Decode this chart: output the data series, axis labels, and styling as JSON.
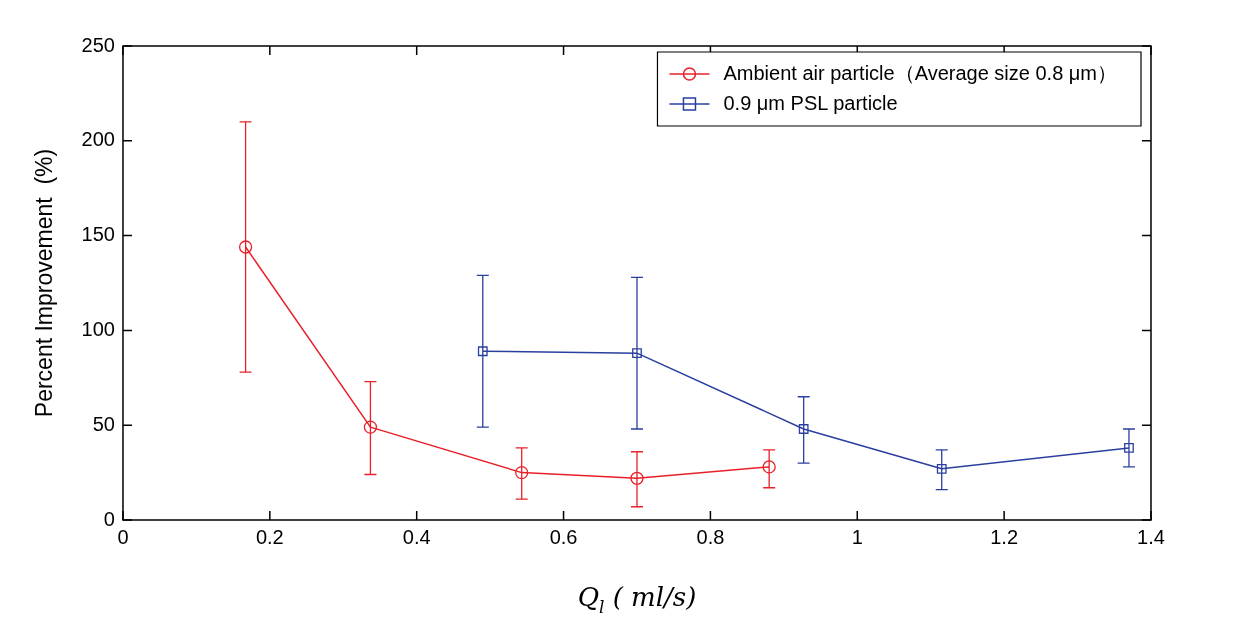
{
  "chart_data": {
    "type": "line",
    "xlabel": "Q$_{l}$ ( ml/s)",
    "ylabel": "Percent Improvement  (%)",
    "xlim": [
      0,
      1.4
    ],
    "xticks": [
      0,
      0.2,
      0.4,
      0.6,
      0.8,
      1,
      1.2,
      1.4
    ],
    "ylim": [
      0,
      250
    ],
    "yticks": [
      0,
      50,
      100,
      150,
      200,
      250
    ],
    "grid": false,
    "legend": "top right",
    "line_style": "solid",
    "series": [
      {
        "name": "Ambient air particle（Average size 0.8 μm）",
        "color": "#e8202a",
        "marker": "circle",
        "x": [
          0.167,
          0.337,
          0.543,
          0.7,
          0.88
        ],
        "values": [
          144,
          49,
          25,
          22,
          28
        ],
        "errors": [
          [
            78,
            210
          ],
          [
            24,
            73
          ],
          [
            11,
            38
          ],
          [
            7,
            36
          ],
          [
            17,
            37
          ]
        ]
      },
      {
        "name": "0.9 μm PSL particle",
        "color": "#2a3fa0",
        "marker": "square",
        "x": [
          0.49,
          0.7,
          0.927,
          1.115,
          1.37
        ],
        "values": [
          89,
          88,
          48,
          27,
          38
        ],
        "errors": [
          [
            49,
            129
          ],
          [
            48,
            128
          ],
          [
            30,
            65
          ],
          [
            16,
            37
          ],
          [
            28,
            48
          ]
        ]
      }
    ]
  }
}
